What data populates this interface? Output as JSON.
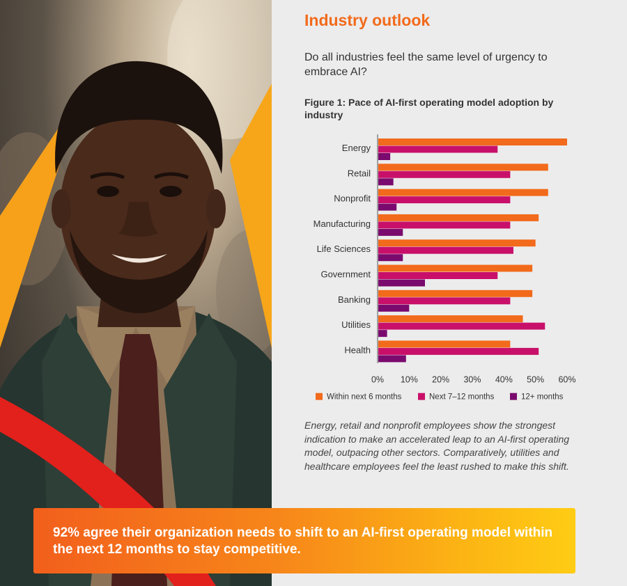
{
  "photo": {
    "alt": "smiling man in suit"
  },
  "heading": "Industry outlook",
  "question": "Do all industries feel the same level of urgency to embrace AI?",
  "figure_title": "Figure 1: Pace of AI-first operating model adoption by industry",
  "chart_data": {
    "type": "bar",
    "orientation": "horizontal",
    "categories": [
      "Energy",
      "Retail",
      "Nonprofit",
      "Manufacturing",
      "Life Sciences",
      "Government",
      "Banking",
      "Utilities",
      "Health"
    ],
    "series": [
      {
        "name": "Within next 6 months",
        "color": "#f26a1b",
        "values": [
          60,
          54,
          54,
          51,
          50,
          49,
          49,
          46,
          42
        ]
      },
      {
        "name": "Next 7–12 months",
        "color": "#c8106a",
        "values": [
          38,
          42,
          42,
          42,
          43,
          38,
          42,
          53,
          51
        ]
      },
      {
        "name": "12+ months",
        "color": "#7a0a6e",
        "values": [
          4,
          5,
          6,
          8,
          8,
          15,
          10,
          3,
          9
        ]
      }
    ],
    "xlim": [
      0,
      60
    ],
    "x_ticks": [
      "0%",
      "10%",
      "20%",
      "30%",
      "40%",
      "50%",
      "60%"
    ],
    "legend_position": "bottom",
    "grid": false
  },
  "caption": "Energy, retail and nonprofit employees show the strongest indication to make an accelerated leap to an AI-first operating model, outpacing other sectors. Comparatively, utilities and healthcare employees feel the least rushed to make this shift.",
  "callout": "92% agree their organization needs to shift to an AI-first operating model within the next 12 months to stay competitive."
}
